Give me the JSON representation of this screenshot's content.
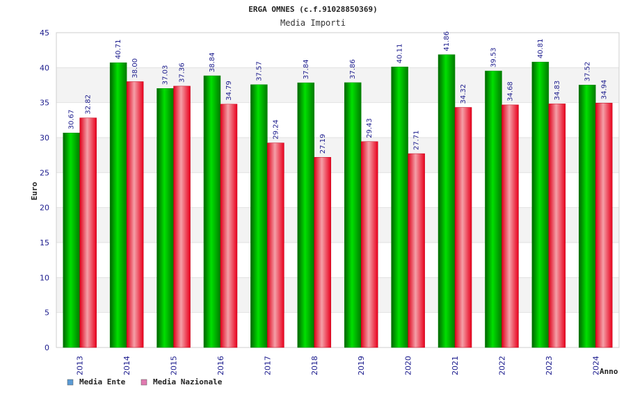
{
  "chart_data": {
    "type": "bar",
    "title": "ERGA OMNES (c.f.91028850369)",
    "subtitle": "Media Importi",
    "xlabel": "Anno",
    "ylabel": "Euro",
    "ylim": [
      0,
      45
    ],
    "yticks": [
      0,
      5,
      10,
      15,
      20,
      25,
      30,
      35,
      40,
      45
    ],
    "grid": "horizontal-bands",
    "legend_position": "bottom-left",
    "categories": [
      "2013",
      "2014",
      "2015",
      "2016",
      "2017",
      "2018",
      "2019",
      "2020",
      "2021",
      "2022",
      "2023",
      "2024"
    ],
    "series": [
      {
        "name": "Media Ente",
        "color": "#00a000",
        "legend_color": "#5b9bd5",
        "values": [
          30.67,
          40.71,
          37.03,
          38.84,
          37.57,
          37.84,
          37.86,
          40.11,
          41.86,
          39.53,
          40.81,
          37.52
        ],
        "labels": [
          "30.67",
          "40.71",
          "37.03",
          "38.84",
          "37.57",
          "37.84",
          "37.86",
          "40.11",
          "41.86",
          "39.53",
          "40.81",
          "37.52"
        ]
      },
      {
        "name": "Media Nazionale",
        "color": "#e8001c",
        "legend_color": "#e07ab0",
        "values": [
          32.82,
          38.0,
          37.36,
          34.79,
          29.24,
          27.19,
          29.43,
          27.71,
          34.32,
          34.68,
          34.83,
          34.94
        ],
        "labels": [
          "32.82",
          "38.00",
          "37.36",
          "34.79",
          "29.24",
          "27.19",
          "29.43",
          "27.71",
          "34.32",
          "34.68",
          "34.83",
          "34.94"
        ]
      }
    ]
  }
}
